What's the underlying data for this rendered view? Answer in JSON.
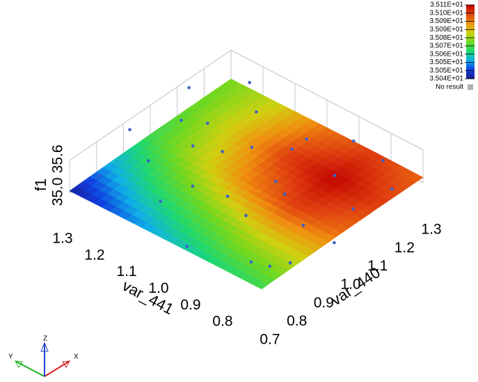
{
  "chart_data": {
    "type": "surface3d",
    "xlabel": "var_440",
    "ylabel": "var_441",
    "zlabel": "f1",
    "xlim": [
      0.7,
      1.3
    ],
    "ylim": [
      0.7,
      1.3
    ],
    "zlim": [
      35.0,
      35.6
    ],
    "xticks": [
      0.7,
      0.8,
      0.9,
      {
        "value": 1,
        "label": "1.0"
      },
      1.1,
      1.2,
      1.3
    ],
    "yticks": [
      0.8,
      0.9,
      {
        "value": 1,
        "label": "1.0"
      },
      1.1,
      1.2,
      1.3
    ],
    "zticks": [
      {
        "value": 35,
        "label": "35.0"
      },
      {
        "value": 35.6,
        "label": "35.6"
      }
    ],
    "surface": {
      "x": [
        0.7,
        0.85,
        1.0,
        1.15,
        1.3
      ],
      "y": [
        0.7,
        0.85,
        1.0,
        1.15,
        1.3
      ],
      "z": [
        [
          35.068,
          35.082,
          35.095,
          35.1,
          35.096
        ],
        [
          35.064,
          35.08,
          35.1,
          35.108,
          35.1
        ],
        [
          35.058,
          35.073,
          35.092,
          35.1,
          35.094
        ],
        [
          35.05,
          35.066,
          35.08,
          35.085,
          35.082
        ],
        [
          35.04,
          35.056,
          35.068,
          35.072,
          35.074
        ]
      ]
    },
    "points": {
      "color": "#3a62c8",
      "x": [
        0.72,
        0.75,
        0.78,
        0.8,
        0.83,
        0.85,
        0.88,
        0.9,
        0.93,
        0.95,
        0.98,
        1.0,
        1.02,
        1.05,
        1.08,
        1.1,
        1.12,
        1.15,
        1.18,
        1.2,
        1.22,
        1.25,
        1.28,
        0.86,
        0.97,
        1.07,
        1.17,
        0.79,
        1.03,
        1.27
      ],
      "y": [
        0.95,
        1.25,
        0.8,
        1.1,
        0.72,
        1.18,
        0.9,
        1.28,
        1.0,
        0.78,
        1.15,
        0.88,
        1.22,
        0.95,
        1.05,
        0.75,
        1.28,
        0.85,
        1.12,
        0.98,
        0.73,
        1.2,
        0.9,
        1.05,
        0.7,
        1.18,
        1.0,
        0.75,
        1.1,
        0.8
      ],
      "z": [
        35.02,
        35.3,
        34.99,
        35.12,
        35.05,
        35.45,
        35.2,
        35.55,
        35.08,
        35.15,
        35.38,
        35.25,
        35.5,
        35.1,
        35.32,
        35.04,
        35.58,
        35.18,
        35.42,
        35.28,
        35.06,
        35.48,
        35.22,
        35.35,
        35.01,
        35.4,
        35.14,
        35.03,
        35.26,
        35.2
      ]
    },
    "colormap": [
      "#1a1a8c",
      "#1040e0",
      "#10b0e8",
      "#20d870",
      "#70d820",
      "#d0d010",
      "#f09010",
      "#e04010",
      "#c00000"
    ],
    "clim": [
      35.0385,
      35.1087
    ],
    "cticks": [
      {
        "value": 35.1087,
        "label": "3.511E+01"
      },
      {
        "value": 35.1009,
        "label": "3.510E+01"
      },
      {
        "value": 35.0931,
        "label": "3.509E+01"
      },
      {
        "value": 35.0853,
        "label": "3.509E+01"
      },
      {
        "value": 35.0775,
        "label": "3.508E+01"
      },
      {
        "value": 35.0697,
        "label": "3.507E+01"
      },
      {
        "value": 35.0619,
        "label": "3.506E+01"
      },
      {
        "value": 35.0541,
        "label": "3.505E+01"
      },
      {
        "value": 35.0463,
        "label": "3.505E+01"
      },
      {
        "value": 35.0385,
        "label": "3.504E+01"
      }
    ],
    "no_result": {
      "label": "No result",
      "color": "#b0b0b0"
    },
    "triad": {
      "x": "X",
      "y": "Y",
      "z": "Z"
    }
  }
}
